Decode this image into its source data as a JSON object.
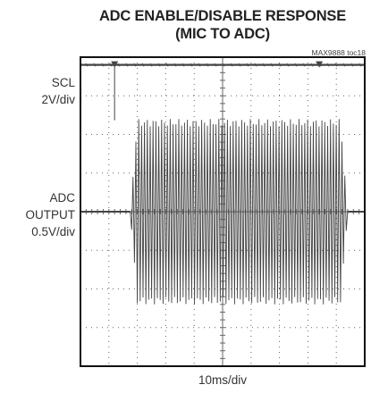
{
  "chart_data": {
    "type": "line",
    "title": "ADC ENABLE/DISABLE RESPONSE",
    "subtitle": "(MIC TO ADC)",
    "figure_ref": "MAX9888 toc18",
    "xlabel": "10ms/div",
    "grid": true,
    "divisions": {
      "x": 10,
      "y": 8
    },
    "x_range_ms": [
      0,
      100
    ],
    "series": [
      {
        "name": "SCL",
        "scale": "2V/div",
        "events_ms": [
          12,
          84
        ],
        "ground_div": 3.8
      },
      {
        "name": "ADC OUTPUT",
        "scale": "0.5V/div",
        "baseline_div": 0,
        "envelope": {
          "start_ms": 17.5,
          "end_ms": 94,
          "amplitude_div": 2.4
        }
      }
    ]
  },
  "labels": {
    "scl": [
      "SCL",
      "2V/div"
    ],
    "adc": [
      "ADC",
      "OUTPUT",
      "0.5V/div"
    ]
  },
  "colors": {
    "trace": "#444444",
    "grid": "#666666",
    "frame": "#111111"
  }
}
